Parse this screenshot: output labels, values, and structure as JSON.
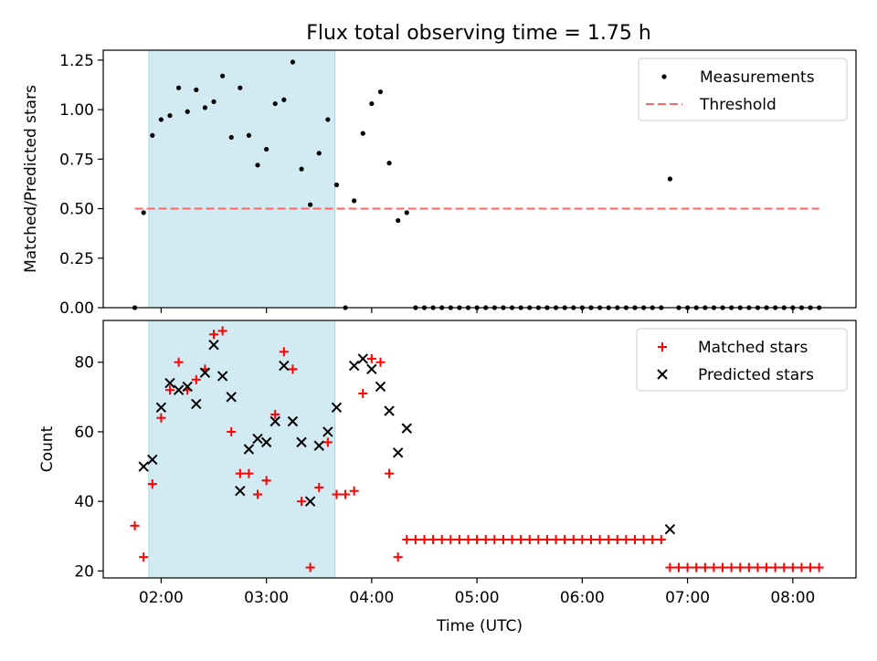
{
  "figure": {
    "title": "Flux total observing time = 1.75 h"
  },
  "chart_data": [
    {
      "type": "scatter",
      "ylabel": "Matched/Predicted stars",
      "ylim": [
        0,
        1.3
      ],
      "yticks": [
        0,
        0.25,
        0.5,
        0.75,
        1.0,
        1.25
      ],
      "ytick_labels": [
        "0.00",
        "0.25",
        "0.50",
        "0.75",
        "1.00",
        "1.25"
      ],
      "xlim": [
        "01:27",
        "08:36"
      ],
      "shaded_span": [
        "01:53",
        "03:39"
      ],
      "shade_color": "#add8e6",
      "legend": {
        "placement": "top-right",
        "entries": [
          {
            "label": "Measurements",
            "kind": "point",
            "color": "#000000"
          },
          {
            "label": "Threshold",
            "kind": "dashed-line",
            "color": "#ff6666"
          }
        ]
      },
      "threshold": {
        "value": 0.5,
        "x_range": [
          "01:45",
          "08:15"
        ],
        "color": "#ff6666"
      },
      "series": [
        {
          "name": "Measurements",
          "x": [
            "01:45",
            "01:50",
            "01:55",
            "02:00",
            "02:05",
            "02:10",
            "02:15",
            "02:20",
            "02:25",
            "02:30",
            "02:35",
            "02:40",
            "02:45",
            "02:50",
            "02:55",
            "03:00",
            "03:05",
            "03:10",
            "03:15",
            "03:20",
            "03:25",
            "03:30",
            "03:35",
            "03:40",
            "03:45",
            "03:50",
            "03:55",
            "04:00",
            "04:05",
            "04:10",
            "04:15",
            "04:20",
            "04:25",
            "04:30",
            "04:35",
            "04:40",
            "04:45",
            "04:50",
            "04:55",
            "05:00",
            "05:05",
            "05:10",
            "05:15",
            "05:20",
            "05:25",
            "05:30",
            "05:35",
            "05:40",
            "05:45",
            "05:50",
            "05:55",
            "06:00",
            "06:05",
            "06:10",
            "06:15",
            "06:20",
            "06:25",
            "06:30",
            "06:35",
            "06:40",
            "06:45",
            "06:50",
            "06:55",
            "07:00",
            "07:05",
            "07:10",
            "07:15",
            "07:20",
            "07:25",
            "07:30",
            "07:35",
            "07:40",
            "07:45",
            "07:50",
            "07:55",
            "08:00",
            "08:05",
            "08:10",
            "08:15"
          ],
          "y": [
            0,
            0.48,
            0.87,
            0.95,
            0.97,
            1.11,
            0.99,
            1.1,
            1.01,
            1.04,
            1.17,
            0.86,
            1.11,
            0.87,
            0.72,
            0.8,
            1.03,
            1.05,
            1.24,
            0.7,
            0.52,
            0.78,
            0.95,
            0.62,
            0,
            0.54,
            0.88,
            1.03,
            1.09,
            0.73,
            0.44,
            0.48,
            0,
            0,
            0,
            0,
            0,
            0,
            0,
            0,
            0,
            0,
            0,
            0,
            0,
            0,
            0,
            0,
            0,
            0,
            0,
            0,
            0,
            0,
            0,
            0,
            0,
            0,
            0,
            0,
            0,
            0.65,
            0,
            0,
            0,
            0,
            0,
            0,
            0,
            0,
            0,
            0,
            0,
            0,
            0,
            0,
            0,
            0,
            0
          ]
        }
      ]
    },
    {
      "type": "scatter",
      "xlabel": "Time (UTC)",
      "ylabel": "Count",
      "ylim": [
        18,
        92
      ],
      "yticks": [
        20,
        40,
        60,
        80
      ],
      "ytick_labels": [
        "20",
        "40",
        "60",
        "80"
      ],
      "xlim": [
        "01:27",
        "08:36"
      ],
      "xticks": [
        "02:00",
        "03:00",
        "04:00",
        "05:00",
        "06:00",
        "07:00",
        "08:00"
      ],
      "shaded_span": [
        "01:53",
        "03:39"
      ],
      "shade_color": "#add8e6",
      "legend": {
        "placement": "top-right",
        "entries": [
          {
            "label": "Matched stars",
            "kind": "plus",
            "color": "#ff0000"
          },
          {
            "label": "Predicted stars",
            "kind": "x",
            "color": "#000000"
          }
        ]
      },
      "series": [
        {
          "name": "Matched stars",
          "x": [
            "01:45",
            "01:50",
            "01:55",
            "02:00",
            "02:05",
            "02:10",
            "02:15",
            "02:20",
            "02:25",
            "02:30",
            "02:35",
            "02:40",
            "02:45",
            "02:50",
            "02:55",
            "03:00",
            "03:05",
            "03:10",
            "03:15",
            "03:20",
            "03:25",
            "03:30",
            "03:35",
            "03:40",
            "03:45",
            "03:50",
            "03:55",
            "04:00",
            "04:05",
            "04:10",
            "04:15",
            "04:20",
            "04:25",
            "04:30",
            "04:35",
            "04:40",
            "04:45",
            "04:50",
            "04:55",
            "05:00",
            "05:05",
            "05:10",
            "05:15",
            "05:20",
            "05:25",
            "05:30",
            "05:35",
            "05:40",
            "05:45",
            "05:50",
            "05:55",
            "06:00",
            "06:05",
            "06:10",
            "06:15",
            "06:20",
            "06:25",
            "06:30",
            "06:35",
            "06:40",
            "06:45",
            "06:50",
            "06:55",
            "07:00",
            "07:05",
            "07:10",
            "07:15",
            "07:20",
            "07:25",
            "07:30",
            "07:35",
            "07:40",
            "07:45",
            "07:50",
            "07:55",
            "08:00",
            "08:05",
            "08:10",
            "08:15"
          ],
          "y": [
            33,
            24,
            45,
            64,
            72,
            80,
            72,
            75,
            78,
            88,
            89,
            60,
            48,
            48,
            42,
            46,
            65,
            83,
            78,
            40,
            21,
            44,
            57,
            42,
            42,
            43,
            71,
            81,
            80,
            48,
            24,
            29,
            29,
            29,
            29,
            29,
            29,
            29,
            29,
            29,
            29,
            29,
            29,
            29,
            29,
            29,
            29,
            29,
            29,
            29,
            29,
            29,
            29,
            29,
            29,
            29,
            29,
            29,
            29,
            29,
            29,
            21,
            21,
            21,
            21,
            21,
            21,
            21,
            21,
            21,
            21,
            21,
            21,
            21,
            21,
            21,
            21,
            21,
            21
          ]
        },
        {
          "name": "Predicted stars",
          "x": [
            "01:50",
            "01:55",
            "02:00",
            "02:05",
            "02:10",
            "02:15",
            "02:20",
            "02:25",
            "02:30",
            "02:35",
            "02:40",
            "02:45",
            "02:50",
            "02:55",
            "03:00",
            "03:05",
            "03:10",
            "03:15",
            "03:20",
            "03:25",
            "03:30",
            "03:35",
            "03:40",
            "03:50",
            "03:55",
            "04:00",
            "04:05",
            "04:10",
            "04:15",
            "04:20",
            "06:50"
          ],
          "y": [
            50,
            52,
            67,
            74,
            72,
            73,
            68,
            77,
            85,
            76,
            70,
            43,
            55,
            58,
            57,
            63,
            79,
            63,
            57,
            40,
            56,
            60,
            67,
            79,
            81,
            78,
            73,
            66,
            54,
            61,
            32
          ]
        }
      ]
    }
  ]
}
